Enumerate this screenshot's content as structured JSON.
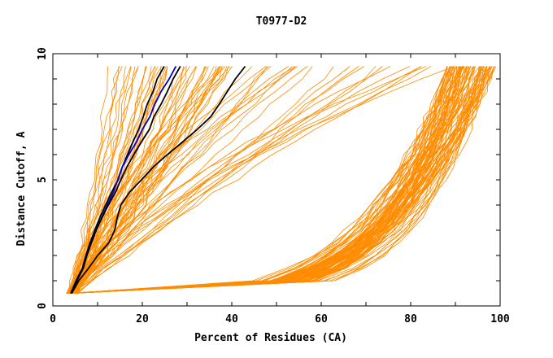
{
  "chart_data": {
    "type": "line",
    "title": "T0977-D2",
    "xlabel": "Percent of Residues (CA)",
    "ylabel": "Distance Cutoff, A",
    "xlim": [
      0,
      100
    ],
    "ylim": [
      0,
      10
    ],
    "x_ticks": [
      0,
      20,
      40,
      60,
      80,
      100
    ],
    "y_ticks": [
      0,
      5,
      10
    ],
    "y_values": [
      0.5,
      1,
      1.5,
      2,
      2.5,
      3,
      3.5,
      4,
      4.5,
      5,
      5.5,
      6,
      6.5,
      7,
      7.5,
      8,
      8.5,
      9,
      9.5
    ],
    "background_colors": {
      "ensemble": "#ff8c00"
    },
    "highlighted_series": [
      {
        "color": "#000000",
        "x": [
          4,
          5.2,
          6.6,
          7.4,
          8.3,
          9.4,
          10.5,
          11.8,
          13.1,
          14.6,
          15.5,
          16.7,
          17.9,
          19.2,
          20.2,
          21.1,
          22.4,
          23.3,
          24.9
        ]
      },
      {
        "color": "#0000cc",
        "x": [
          4,
          5.3,
          6.7,
          7.5,
          8.6,
          9.6,
          10.9,
          12.2,
          13.5,
          14.5,
          15.5,
          17,
          18.7,
          20,
          21.7,
          22.8,
          24.2,
          26,
          27.5
        ]
      },
      {
        "color": "#000000",
        "x": [
          4,
          5.4,
          6.8,
          7.6,
          8.6,
          9.7,
          11,
          12.4,
          14,
          15.2,
          16.5,
          18.1,
          19.8,
          21.6,
          22.6,
          24.2,
          25.6,
          26.9,
          28.5
        ]
      },
      {
        "color": "#000000",
        "x": [
          4.2,
          5.8,
          8,
          10,
          12.5,
          13.8,
          14.4,
          15.2,
          17.1,
          19.8,
          22.4,
          25.6,
          29,
          32.3,
          35.3,
          37.2,
          39,
          40.8,
          43
        ]
      }
    ]
  }
}
